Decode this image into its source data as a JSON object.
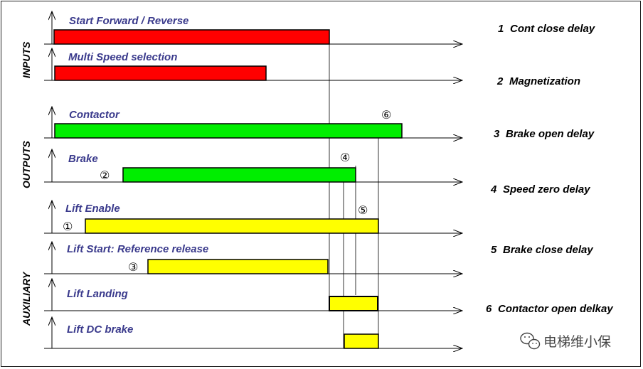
{
  "colors": {
    "input": "#ff0000",
    "output": "#00ee00",
    "auxiliary": "#ffff00",
    "label": "#3a3a8c"
  },
  "sections": [
    "INPUTS",
    "OUTPUTS",
    "AUXILIARY"
  ],
  "signals": [
    {
      "label": "Start Forward / Reverse",
      "type": "input"
    },
    {
      "label": "Multi Speed selection",
      "type": "input"
    },
    {
      "label": "Contactor",
      "type": "output"
    },
    {
      "label": "Brake",
      "type": "output"
    },
    {
      "label": "Lift Enable",
      "type": "auxiliary"
    },
    {
      "label": "Lift Start: Reference release",
      "type": "auxiliary"
    },
    {
      "label": "Lift Landing",
      "type": "auxiliary"
    },
    {
      "label": "Lift DC brake",
      "type": "auxiliary"
    }
  ],
  "markers": [
    "①",
    "②",
    "③",
    "④",
    "⑤",
    "⑥"
  ],
  "legend": [
    {
      "number": "1",
      "text": "Cont close delay"
    },
    {
      "number": "2",
      "text": "Magnetization"
    },
    {
      "number": "3",
      "text": "Brake open delay"
    },
    {
      "number": "4",
      "text": "Speed zero delay"
    },
    {
      "number": "5",
      "text": "Brake close delay"
    },
    {
      "number": "6",
      "text": "Contactor open delkay"
    }
  ],
  "watermark": {
    "text": "电梯维小保",
    "icon": "wechat-icon"
  }
}
